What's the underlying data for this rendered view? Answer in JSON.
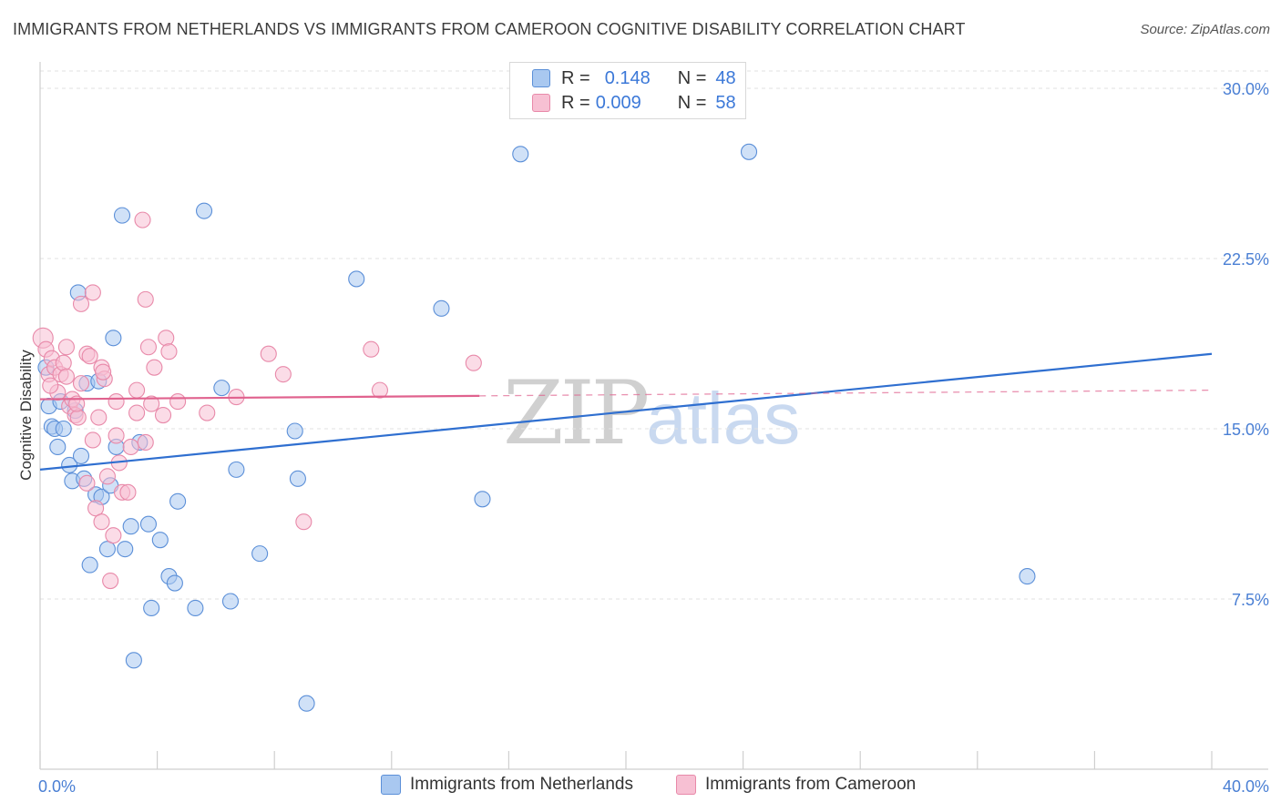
{
  "title": "IMMIGRANTS FROM NETHERLANDS VS IMMIGRANTS FROM CAMEROON COGNITIVE DISABILITY CORRELATION CHART",
  "source": "Source: ZipAtlas.com",
  "watermark": {
    "part1": "ZIP",
    "part2": "atlas"
  },
  "legend": {
    "r_label": "R =",
    "n_label": "N =",
    "rows": [
      {
        "r": "0.148",
        "n": "48"
      },
      {
        "r": "0.009",
        "n": "58"
      }
    ]
  },
  "colors": {
    "blue_fill": "#a9c8f0",
    "blue_stroke": "#5b8fd8",
    "blue_line": "#2f6fd0",
    "pink_fill": "#f7c0d3",
    "pink_stroke": "#e889a9",
    "pink_line": "#e0628e"
  },
  "chart_data": {
    "type": "scatter",
    "title": "IMMIGRANTS FROM NETHERLANDS VS IMMIGRANTS FROM CAMEROON COGNITIVE DISABILITY CORRELATION CHART",
    "xlabel": "",
    "ylabel": "Cognitive Disability",
    "xlim": [
      0,
      40
    ],
    "ylim": [
      0,
      30.8
    ],
    "x_tick_labels": [
      "0.0%",
      "40.0%"
    ],
    "y_ticks": [
      7.5,
      15.0,
      22.5,
      30.0
    ],
    "y_tick_labels": [
      "7.5%",
      "15.0%",
      "22.5%",
      "30.0%"
    ],
    "series": [
      {
        "name": "Immigrants from Netherlands",
        "color": "blue",
        "trend": {
          "x0": 0,
          "y0": 13.2,
          "x1": 40,
          "y1": 18.3,
          "dashed_from": null
        },
        "points": [
          [
            0.3,
            16.0
          ],
          [
            0.4,
            15.1
          ],
          [
            0.5,
            15.0
          ],
          [
            0.6,
            14.2
          ],
          [
            0.7,
            16.2
          ],
          [
            0.8,
            15.0
          ],
          [
            1.0,
            13.4
          ],
          [
            1.1,
            12.7
          ],
          [
            1.2,
            15.8
          ],
          [
            1.3,
            21.0
          ],
          [
            1.4,
            13.8
          ],
          [
            1.5,
            12.8
          ],
          [
            1.6,
            17.0
          ],
          [
            1.7,
            9.0
          ],
          [
            1.9,
            12.1
          ],
          [
            2.0,
            17.1
          ],
          [
            2.1,
            12.0
          ],
          [
            2.3,
            9.7
          ],
          [
            2.4,
            12.5
          ],
          [
            2.5,
            19.0
          ],
          [
            2.6,
            14.2
          ],
          [
            2.8,
            24.4
          ],
          [
            2.9,
            9.7
          ],
          [
            3.1,
            10.7
          ],
          [
            3.2,
            4.8
          ],
          [
            3.4,
            14.4
          ],
          [
            3.7,
            10.8
          ],
          [
            3.8,
            7.1
          ],
          [
            4.1,
            10.1
          ],
          [
            4.4,
            8.5
          ],
          [
            4.6,
            8.2
          ],
          [
            4.7,
            11.8
          ],
          [
            5.6,
            24.6
          ],
          [
            5.3,
            7.1
          ],
          [
            6.2,
            16.8
          ],
          [
            6.5,
            7.4
          ],
          [
            6.7,
            13.2
          ],
          [
            7.5,
            9.5
          ],
          [
            8.7,
            14.9
          ],
          [
            8.8,
            12.8
          ],
          [
            9.1,
            2.9
          ],
          [
            10.8,
            21.6
          ],
          [
            13.7,
            20.3
          ],
          [
            15.1,
            11.9
          ],
          [
            16.4,
            27.1
          ],
          [
            24.2,
            27.2
          ],
          [
            33.7,
            8.5
          ],
          [
            0.2,
            17.7
          ]
        ]
      },
      {
        "name": "Immigrants from Cameroon",
        "color": "pink",
        "trend": {
          "x0": 0,
          "y0": 16.3,
          "x1": 40,
          "y1": 16.7,
          "dashed_from": 15.0
        },
        "points": [
          [
            0.1,
            19.0
          ],
          [
            0.2,
            18.5
          ],
          [
            0.3,
            17.4
          ],
          [
            0.4,
            18.1
          ],
          [
            0.5,
            17.7
          ],
          [
            0.6,
            16.6
          ],
          [
            0.7,
            17.4
          ],
          [
            0.8,
            17.9
          ],
          [
            0.9,
            17.3
          ],
          [
            0.9,
            18.6
          ],
          [
            1.0,
            16.0
          ],
          [
            1.1,
            16.3
          ],
          [
            1.2,
            15.6
          ],
          [
            1.3,
            15.5
          ],
          [
            1.4,
            17.0
          ],
          [
            1.4,
            20.5
          ],
          [
            1.6,
            18.3
          ],
          [
            1.6,
            12.6
          ],
          [
            1.7,
            18.2
          ],
          [
            1.8,
            14.5
          ],
          [
            1.8,
            21.0
          ],
          [
            1.9,
            11.5
          ],
          [
            2.0,
            15.5
          ],
          [
            2.1,
            10.9
          ],
          [
            2.1,
            17.7
          ],
          [
            2.2,
            17.2
          ],
          [
            2.3,
            12.9
          ],
          [
            2.4,
            8.3
          ],
          [
            2.5,
            10.3
          ],
          [
            2.6,
            16.2
          ],
          [
            2.6,
            14.7
          ],
          [
            2.7,
            13.5
          ],
          [
            2.8,
            12.2
          ],
          [
            3.0,
            12.2
          ],
          [
            3.1,
            14.2
          ],
          [
            3.3,
            15.7
          ],
          [
            3.3,
            16.7
          ],
          [
            3.5,
            24.2
          ],
          [
            3.6,
            14.4
          ],
          [
            3.6,
            20.7
          ],
          [
            3.7,
            18.6
          ],
          [
            3.8,
            16.1
          ],
          [
            3.9,
            17.7
          ],
          [
            4.2,
            15.6
          ],
          [
            4.3,
            19.0
          ],
          [
            4.4,
            18.4
          ],
          [
            4.7,
            16.2
          ],
          [
            5.7,
            15.7
          ],
          [
            6.7,
            16.4
          ],
          [
            7.8,
            18.3
          ],
          [
            8.3,
            17.4
          ],
          [
            9.0,
            10.9
          ],
          [
            11.3,
            18.5
          ],
          [
            11.6,
            16.7
          ],
          [
            14.8,
            17.9
          ],
          [
            0.35,
            16.9
          ],
          [
            1.25,
            16.1
          ],
          [
            2.15,
            17.5
          ]
        ]
      }
    ]
  },
  "bottom_legend": [
    {
      "label": "Immigrants from Netherlands"
    },
    {
      "label": "Immigrants from Cameroon"
    }
  ]
}
